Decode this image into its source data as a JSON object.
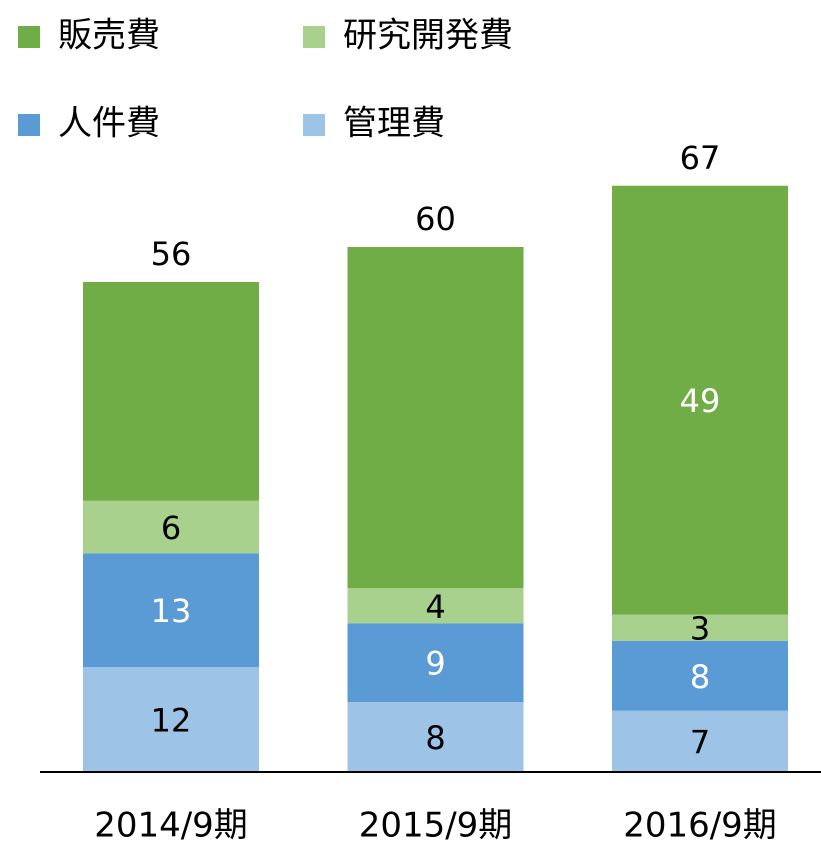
{
  "chart_data": {
    "type": "stacked_bar",
    "categories": [
      "2014/9期",
      "2015/9期",
      "2016/9期"
    ],
    "series": [
      {
        "name": "管理費",
        "color": "#9dc3e6",
        "label_color": "#000000",
        "values": [
          12,
          8,
          7
        ]
      },
      {
        "name": "人件費",
        "color": "#5b9bd5",
        "label_color": "#ffffff",
        "values": [
          13,
          9,
          8
        ]
      },
      {
        "name": "研究開発費",
        "color": "#a9d18e",
        "label_color": "#000000",
        "values": [
          6,
          4,
          3
        ]
      },
      {
        "name": "販売費",
        "color": "#70ad47",
        "label_color": "#ffffff",
        "values": [
          25,
          39,
          49
        ],
        "value_labels": [
          null,
          null,
          "49"
        ]
      }
    ],
    "totals": [
      56,
      60,
      67
    ],
    "ylim": [
      0,
      80
    ],
    "legend": "top-left"
  }
}
